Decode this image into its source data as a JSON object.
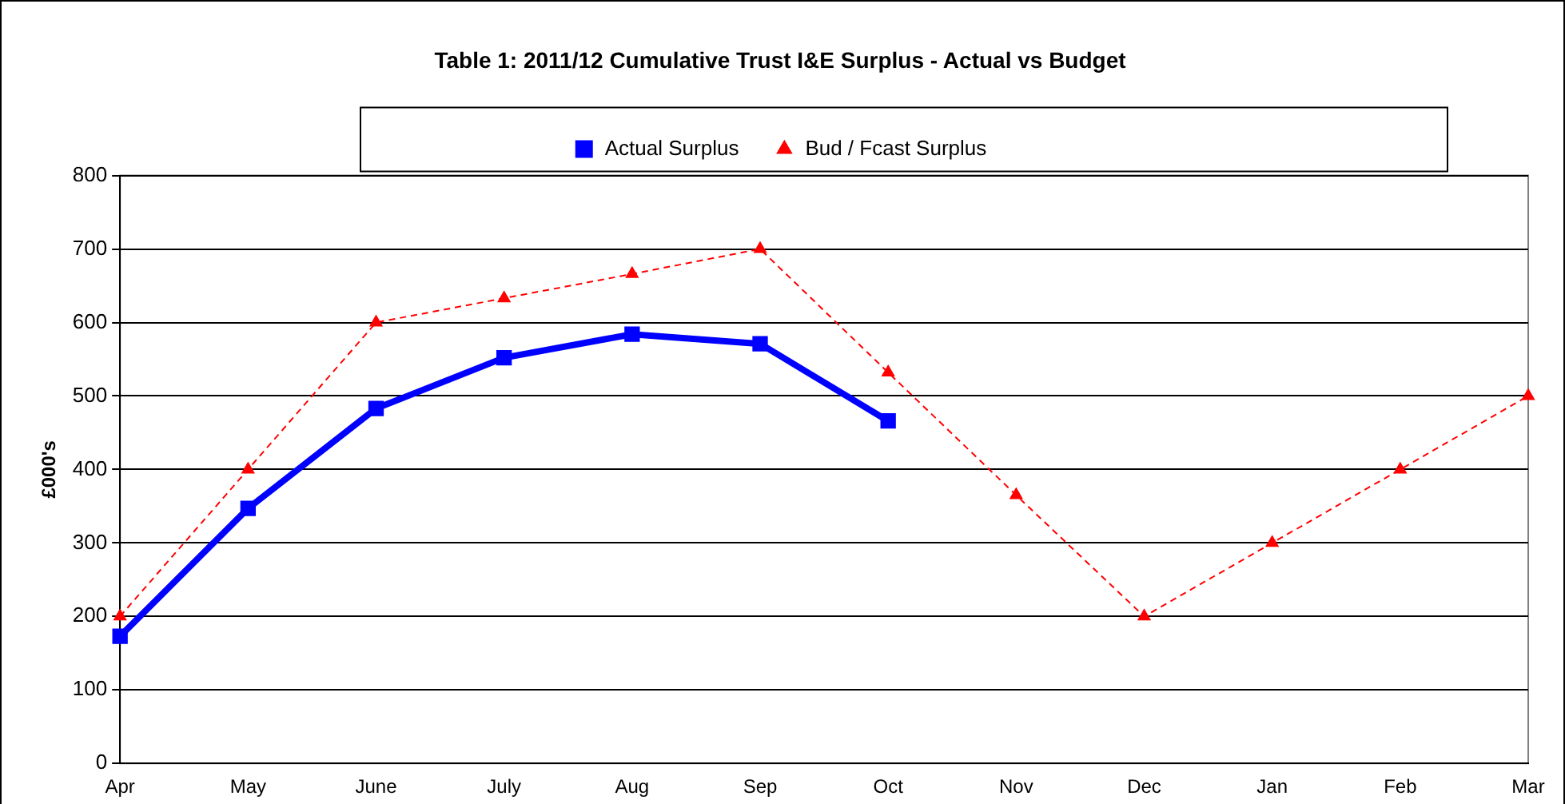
{
  "chart_data": {
    "type": "line",
    "title": "Table 1: 2011/12 Cumulative Trust I&E Surplus - Actual vs Budget",
    "ylabel": "£000's",
    "categories": [
      "Apr",
      "May",
      "June",
      "July",
      "Aug",
      "Sep",
      "Oct",
      "Nov",
      "Dec",
      "Jan",
      "Feb",
      "Mar"
    ],
    "series": [
      {
        "name": "Actual Surplus",
        "color": "#0000ff",
        "marker": "square",
        "line_style": "solid",
        "values": [
          173,
          347,
          483,
          552,
          584,
          571,
          466,
          null,
          null,
          null,
          null,
          null
        ]
      },
      {
        "name": "Bud / Fcast Surplus",
        "color": "#ff0000",
        "marker": "triangle",
        "line_style": "dashed",
        "values": [
          200,
          400,
          600,
          633,
          666,
          700,
          532,
          365,
          200,
          300,
          400,
          500
        ]
      }
    ],
    "ylim": [
      0,
      800
    ],
    "yticks": [
      0,
      100,
      200,
      300,
      400,
      500,
      600,
      700,
      800
    ],
    "grid": "y",
    "legend": "top"
  }
}
